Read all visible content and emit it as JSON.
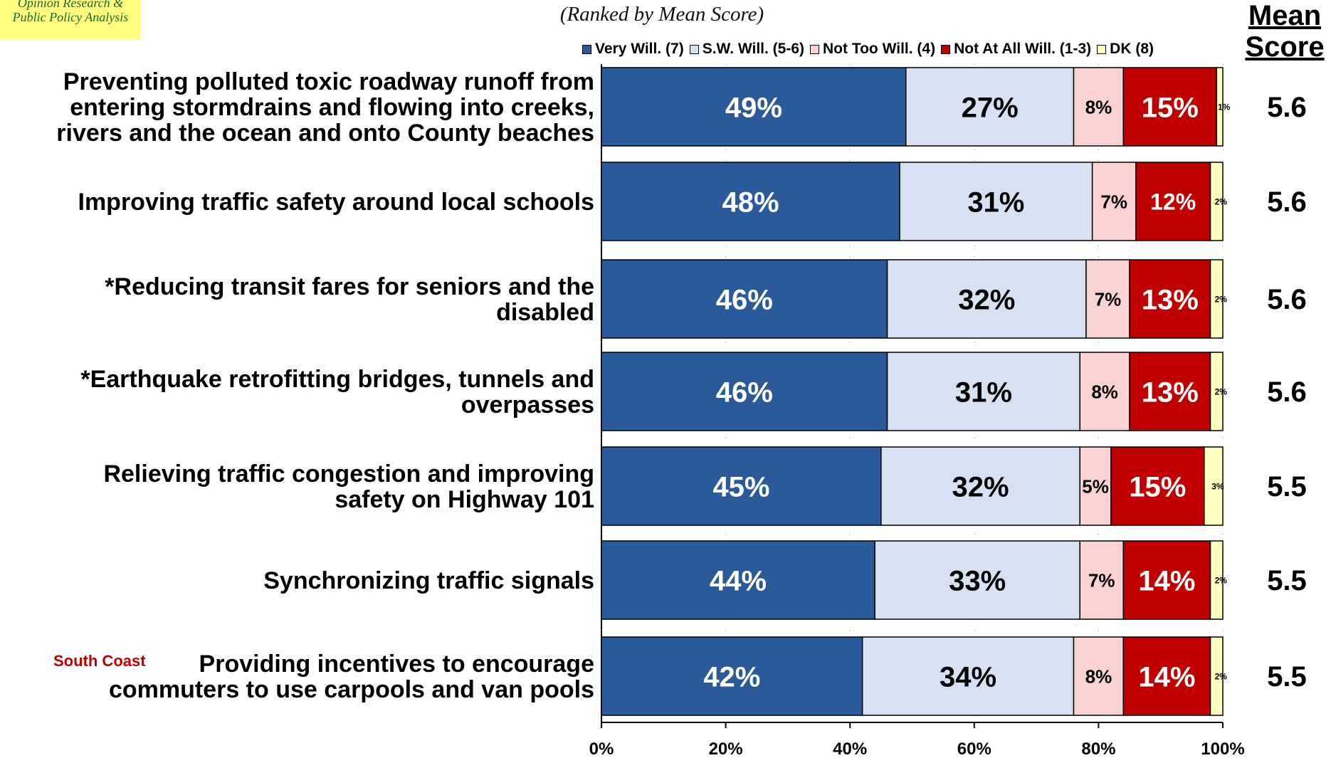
{
  "logo": {
    "line1": "Opinion Research &",
    "line2": "Public Policy Analysis"
  },
  "subtitle": "(Ranked by Mean Score)",
  "mean_header": {
    "line1": "Mean",
    "line2": "Score"
  },
  "colors": {
    "very": "#2b5a9b",
    "sw": "#d6e2f2",
    "not_too": "#fbd2d2",
    "not_at_all": "#c00000",
    "dk": "#ffffc0"
  },
  "legend": [
    {
      "label": "Very Will. (7)",
      "color": "#2b5a9b"
    },
    {
      "label": "S.W. Will. (5-6)",
      "color": "#d6e2f2"
    },
    {
      "label": "Not Too Will. (4)",
      "color": "#fbd2d2"
    },
    {
      "label": "Not At All Will. (1-3)",
      "color": "#c00000"
    },
    {
      "label": "DK (8)",
      "color": "#ffffc0"
    }
  ],
  "chart_data": {
    "type": "bar",
    "orientation": "horizontal",
    "stacked": true,
    "subtitle": "(Ranked by Mean Score)",
    "xlim": [
      0,
      100
    ],
    "x_ticks": [
      "0%",
      "20%",
      "40%",
      "60%",
      "80%",
      "100%"
    ],
    "categories": [
      {
        "lines": [
          "Preventing polluted toxic roadway runoff from",
          "entering stormdrains and flowing into creeks,",
          "rivers and the ocean and onto County beaches"
        ],
        "tag": ""
      },
      {
        "lines": [
          "Improving traffic safety around local schools"
        ],
        "tag": ""
      },
      {
        "lines": [
          "*Reducing transit fares for seniors and the",
          "disabled"
        ],
        "tag": ""
      },
      {
        "lines": [
          "*Earthquake retrofitting bridges, tunnels and",
          "overpasses"
        ],
        "tag": ""
      },
      {
        "lines": [
          "Relieving traffic congestion and improving",
          "safety on Highway 101"
        ],
        "tag": ""
      },
      {
        "lines": [
          "Synchronizing traffic signals"
        ],
        "tag": ""
      },
      {
        "lines": [
          "Providing incentives to encourage",
          "commuters to use carpools and van pools"
        ],
        "tag": "South Coast"
      }
    ],
    "series": [
      {
        "name": "Very Will. (7)",
        "values": [
          49,
          48,
          46,
          46,
          45,
          44,
          42
        ],
        "labels": [
          "49%",
          "48%",
          "46%",
          "46%",
          "45%",
          "44%",
          "42%"
        ]
      },
      {
        "name": "S.W. Will. (5-6)",
        "values": [
          27,
          31,
          32,
          31,
          32,
          33,
          34
        ],
        "labels": [
          "27%",
          "31%",
          "32%",
          "31%",
          "32%",
          "33%",
          "34%"
        ]
      },
      {
        "name": "Not Too Will. (4)",
        "values": [
          8,
          7,
          7,
          8,
          5,
          7,
          8
        ],
        "labels": [
          "8%",
          "7%",
          "7%",
          "8%",
          "5%",
          "7%",
          "8%"
        ]
      },
      {
        "name": "Not At All Will. (1-3)",
        "values": [
          15,
          12,
          13,
          13,
          15,
          14,
          14
        ],
        "labels": [
          "15%",
          "12%",
          "13%",
          "13%",
          "15%",
          "14%",
          "14%"
        ]
      },
      {
        "name": "DK (8)",
        "values": [
          1,
          2,
          2,
          2,
          3,
          2,
          2
        ],
        "labels": [
          "1%",
          "2%",
          "2%",
          "2%",
          "3%",
          "2%",
          "2%"
        ]
      }
    ],
    "mean_scores": [
      "5.6",
      "5.6",
      "5.6",
      "5.6",
      "5.5",
      "5.5",
      "5.5"
    ]
  }
}
